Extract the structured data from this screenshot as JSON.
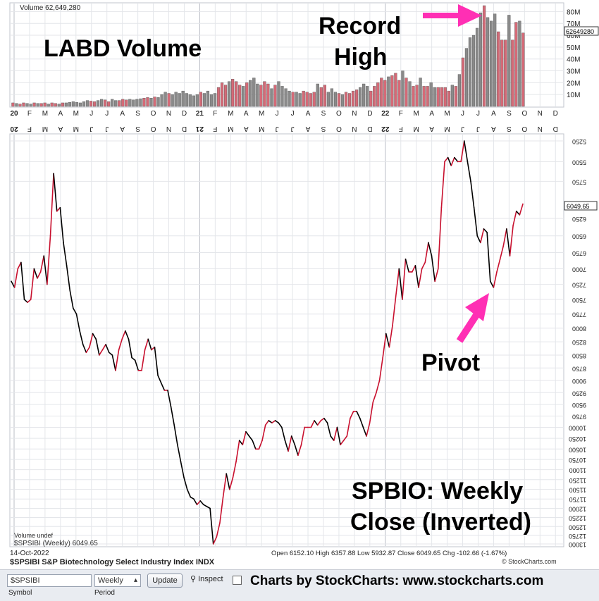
{
  "volume_panel": {
    "title": "Volume 62,649,280",
    "current_volume_tag": "62649280",
    "y_ticks": [
      "80M",
      "70M",
      "60M",
      "50M",
      "40M",
      "30M",
      "20M",
      "10M"
    ],
    "annotations": {
      "title": "LABD Volume",
      "record_1": "Record",
      "record_2": "High"
    }
  },
  "x_axis_labels": [
    "20",
    "F",
    "M",
    "A",
    "M",
    "J",
    "J",
    "A",
    "S",
    "O",
    "N",
    "D",
    "21",
    "F",
    "M",
    "A",
    "M",
    "J",
    "J",
    "A",
    "S",
    "O",
    "N",
    "D",
    "22",
    "F",
    "M",
    "A",
    "M",
    "J",
    "J",
    "A",
    "S",
    "O",
    "N",
    "D"
  ],
  "price_panel": {
    "current_price_tag": "6049.65",
    "y_ticks": [
      "5250",
      "5500",
      "5750",
      "6250",
      "6500",
      "6750",
      "7000",
      "7250",
      "7500",
      "7750",
      "8000",
      "8250",
      "8500",
      "8750",
      "9000",
      "9250",
      "9500",
      "9750",
      "10000",
      "10250",
      "10500",
      "10750",
      "11000",
      "11250",
      "11500",
      "11750",
      "12000",
      "12250",
      "12500",
      "12750",
      "13000"
    ],
    "annotations": {
      "pivot": "Pivot",
      "caption_1": "SPBIO:  Weekly",
      "caption_2": "Close (Inverted)"
    },
    "legend_volume": "Volume undef",
    "legend_series": "$SPSIBI (Weekly) 6049.65",
    "date": "14-Oct-2022",
    "symbol_title": "$SPSIBI S&P Biotechnology Select Industry Index INDX",
    "ohlc": "Open 6152.10  High 6357.88  Low 5932.87  Close 6049.65  Chg -102.66 (-1.67%)",
    "copyright": "© StockCharts.com"
  },
  "toolbar": {
    "symbol_value": "$SPSIBI",
    "symbol_label": "Symbol",
    "period_value": "Weekly",
    "period_label": "Period",
    "update_label": "Update",
    "inspect_label": "Inspect"
  },
  "credit": "Charts by StockCharts:  www.stockcharts.com",
  "colors": {
    "up": "#d46a77",
    "down": "#8a8a8a",
    "line_up": "#c8102e",
    "line_down": "#000000",
    "arrow": "#ff2fb4"
  },
  "chart_data": [
    {
      "type": "bar",
      "title": "Volume 62,649,280",
      "series_name": "LABD Volume",
      "ylim": [
        0,
        85000000
      ],
      "values_millions": [
        3,
        2.5,
        2,
        3,
        2.5,
        2,
        3,
        2.5,
        2.5,
        3,
        2,
        3,
        2.5,
        2,
        3,
        3,
        3.5,
        4,
        3.5,
        3,
        4,
        5,
        4.5,
        4,
        5,
        6,
        5.5,
        4,
        6,
        5,
        5,
        6,
        5.5,
        6,
        5.5,
        6,
        6.5,
        7,
        7.5,
        7,
        8,
        7.5,
        10,
        12,
        11,
        10,
        12,
        11,
        13,
        11,
        10,
        9,
        10,
        12,
        11,
        13,
        10,
        11,
        16,
        20,
        18,
        21,
        23,
        21,
        18,
        17,
        20,
        22,
        24,
        19,
        18,
        21,
        19,
        15,
        18,
        21,
        17,
        15,
        13,
        12,
        12,
        11,
        13,
        12,
        11,
        12,
        19,
        16,
        18,
        12,
        15,
        12,
        11,
        10,
        12,
        11,
        13,
        14,
        16,
        19,
        17,
        13,
        17,
        20,
        24,
        22,
        25,
        26,
        28,
        22,
        30,
        24,
        21,
        17,
        18,
        24,
        17,
        17,
        20,
        16,
        16,
        16,
        16,
        13,
        18,
        17,
        27,
        41,
        49,
        58,
        60,
        66,
        79,
        85,
        75,
        72,
        78,
        63,
        56,
        56,
        77,
        56,
        71,
        72,
        62
      ],
      "colors_up_down": "up=red, down=gray"
    },
    {
      "type": "line",
      "title": "$SPSIBI S&P Biotechnology Select Industry Index INDX",
      "inverted": true,
      "ylim": [
        5250,
        13000
      ],
      "y_scale": "log",
      "x_range": [
        "2020-01",
        "2022-10"
      ],
      "values": [
        7200,
        7300,
        7000,
        6900,
        7500,
        7550,
        7500,
        7000,
        7150,
        7050,
        6800,
        7250,
        6500,
        5650,
        6150,
        6100,
        6600,
        6950,
        7350,
        7650,
        7750,
        8050,
        8300,
        8450,
        8350,
        8100,
        8200,
        8500,
        8400,
        8300,
        8450,
        8500,
        8800,
        8400,
        8200,
        8050,
        8200,
        8550,
        8600,
        8800,
        8800,
        8400,
        8200,
        8400,
        8350,
        8900,
        9050,
        9200,
        9200,
        9550,
        9950,
        10400,
        10800,
        11200,
        11500,
        11700,
        11750,
        11900,
        11800,
        11900,
        11950,
        12000,
        13000,
        12800,
        12400,
        11700,
        11100,
        11500,
        11200,
        10800,
        10300,
        10400,
        10100,
        10200,
        10300,
        10500,
        10500,
        10300,
        9950,
        9850,
        9900,
        9850,
        9900,
        10000,
        10300,
        10550,
        10200,
        10400,
        10650,
        10400,
        10000,
        10000,
        10000,
        9850,
        9950,
        9850,
        9800,
        9900,
        10200,
        10300,
        10000,
        10400,
        10300,
        10200,
        9800,
        9650,
        9650,
        9800,
        10000,
        10200,
        9900,
        9450,
        9250,
        9000,
        8550,
        8100,
        8350,
        7950,
        7450,
        7000,
        7500,
        6850,
        7050,
        7050,
        6950,
        7300,
        7000,
        6900,
        6600,
        6800,
        7200,
        7000,
        6100,
        5500,
        5450,
        5550,
        5450,
        5500,
        5500,
        5250,
        5500,
        5750,
        6100,
        6500,
        6600,
        6400,
        6450,
        7200,
        7300,
        7050,
        6850,
        6650,
        6400,
        6800,
        6350,
        6150,
        6200,
        6050
      ]
    }
  ]
}
